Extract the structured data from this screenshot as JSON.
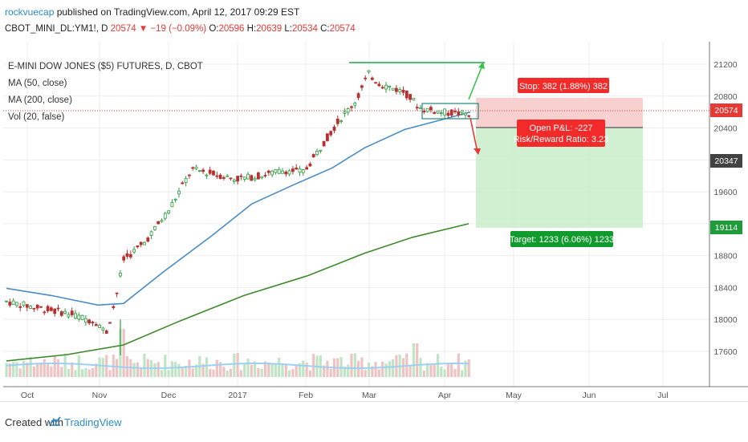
{
  "header": {
    "author": "rockvuecap",
    "published_text": " published on TradingView.com, April 12, 2017 09:29 EST",
    "symbol": "CBOT_MINI_DL:YM1!, D",
    "last": "20574",
    "change": "−19 (−0.09%)",
    "o_label": " O:",
    "o_value": "20596",
    "h_label": " H:",
    "h_value": "20639",
    "l_label": " L:",
    "l_value": "20534",
    "c_label": " C:",
    "c_value": "20574"
  },
  "legend": {
    "title": "E-MINI DOW JONES ($5) FUTURES, D, CBOT",
    "ma50": "MA (50, close)",
    "ma200": "MA (200, close)",
    "vol": "Vol (20, false)"
  },
  "price_axis": {
    "ticks": [
      "21200",
      "20800",
      "20400",
      "20000",
      "19600",
      "19200",
      "18800",
      "18400",
      "18000",
      "17600"
    ],
    "badges": [
      {
        "text": "20574",
        "color": "#e53935"
      },
      {
        "text": "20347",
        "color": "#424242"
      },
      {
        "text": "19114",
        "color": "#1e9c39"
      }
    ]
  },
  "time_axis": {
    "ticks": [
      "Oct",
      "Nov",
      "Dec",
      "2017",
      "Feb",
      "Mar",
      "Apr",
      "May",
      "Jun",
      "Jul"
    ]
  },
  "position_tool": {
    "stop_label": "Stop: 382 (1.88%) 382",
    "pnl_label": "Open P&L: -227",
    "rr_label": "Risk/Reward Ratio: 3.23",
    "target_label": "Target: 1233 (6.06%) 1233"
  },
  "colors": {
    "up": "#2e9e42",
    "down": "#b73131",
    "ma50": "#4a8cc4",
    "ma200": "#3d8a2a",
    "stop_fill": "#f8c4c4",
    "target_fill": "#c6ebc6",
    "link": "#2d8ccc"
  },
  "footer": {
    "created_with": "Created with",
    "brand": "TradingView",
    "logo_icon": "tradingview-logo-icon"
  }
}
